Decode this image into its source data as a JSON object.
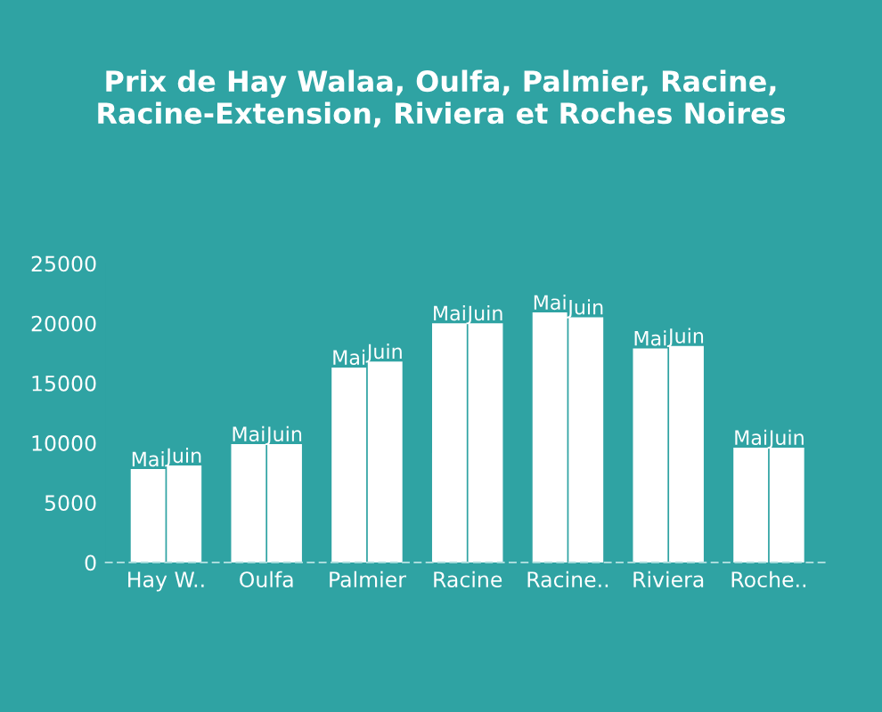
{
  "chart_data": {
    "type": "bar",
    "title": "Prix de Hay Walaa, Oulfa, Palmier, Racine, Racine-Extension, Riviera et Roches Noires",
    "categories": [
      "Hay W..",
      "Oulfa",
      "Palmier",
      "Racine",
      "Racine..",
      "Riviera",
      "Roche.."
    ],
    "series": [
      {
        "name": "Mai",
        "color": "#ffffff",
        "values": [
          7700,
          9800,
          16200,
          19900,
          20800,
          17800,
          9500
        ]
      },
      {
        "name": "Juin",
        "color": "#ffffff",
        "values": [
          8000,
          9800,
          16700,
          19900,
          20400,
          18000,
          9500
        ]
      }
    ],
    "ylim": [
      0,
      25000
    ],
    "yticks": [
      0,
      5000,
      10000,
      15000,
      20000,
      25000
    ],
    "grid": false,
    "legend": false
  }
}
